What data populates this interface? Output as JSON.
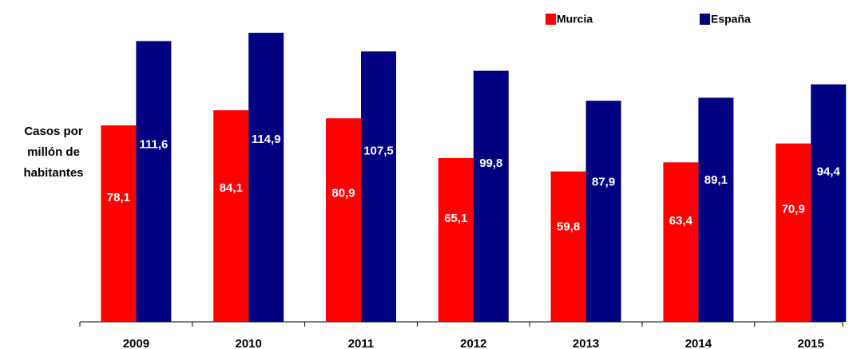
{
  "chart_data": {
    "type": "bar",
    "y_label": "Casos por millón de habitantes",
    "categories": [
      "2009",
      "2010",
      "2011",
      "2012",
      "2013",
      "2014",
      "2015"
    ],
    "series": [
      {
        "name": "Murcia",
        "color": "#ff0000",
        "values": [
          78.1,
          84.1,
          80.9,
          65.1,
          59.8,
          63.4,
          70.9
        ],
        "value_labels": [
          "78,1",
          "84,1",
          "80,9",
          "65,1",
          "59,8",
          "63,4",
          "70,9"
        ]
      },
      {
        "name": "España",
        "color": "#000080",
        "values": [
          111.6,
          114.9,
          107.5,
          99.8,
          87.9,
          89.1,
          94.4
        ],
        "value_labels": [
          "111,6",
          "114,9",
          "107,5",
          "99,8",
          "87,9",
          "89,1",
          "94,4"
        ]
      }
    ]
  }
}
